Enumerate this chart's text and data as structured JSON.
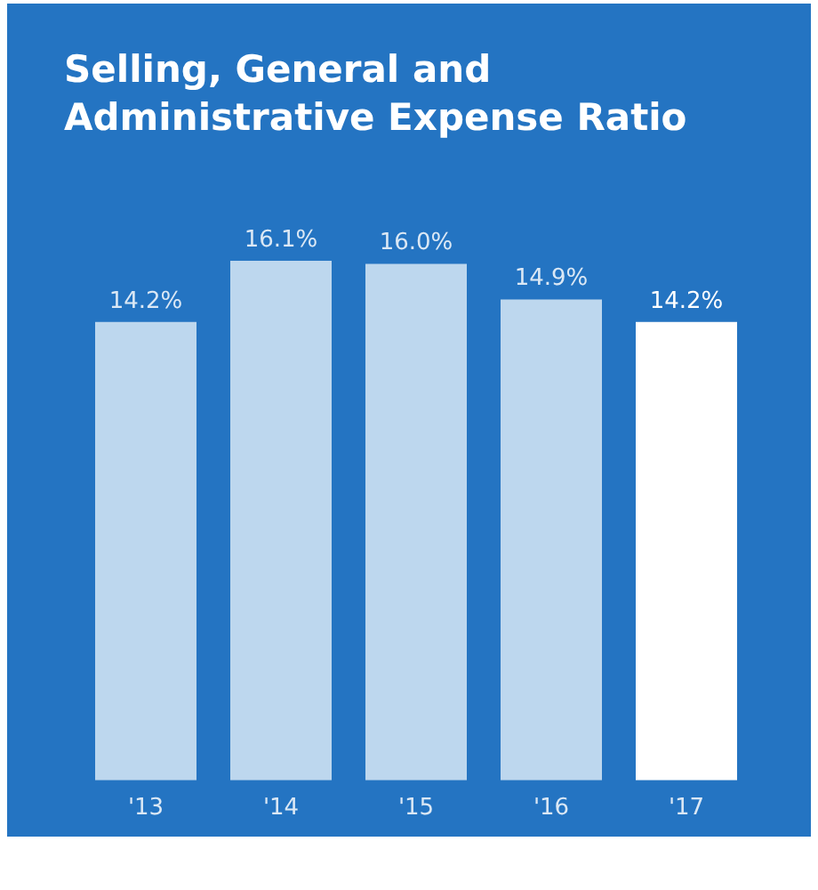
{
  "chart_data": {
    "type": "bar",
    "title": "Selling, General and Administrative Expense Ratio",
    "categories": [
      "'13",
      "'14",
      "'15",
      "'16",
      "'17"
    ],
    "values": [
      14.2,
      16.1,
      16.0,
      14.9,
      14.2
    ],
    "value_labels": [
      "14.2%",
      "16.1%",
      "16.0%",
      "14.9%",
      "14.2%"
    ],
    "colors": [
      "#bdd7ee",
      "#bdd7ee",
      "#bdd7ee",
      "#bdd7ee",
      "#ffffff"
    ],
    "tick_labels": "x",
    "grid": false,
    "legend": false
  }
}
